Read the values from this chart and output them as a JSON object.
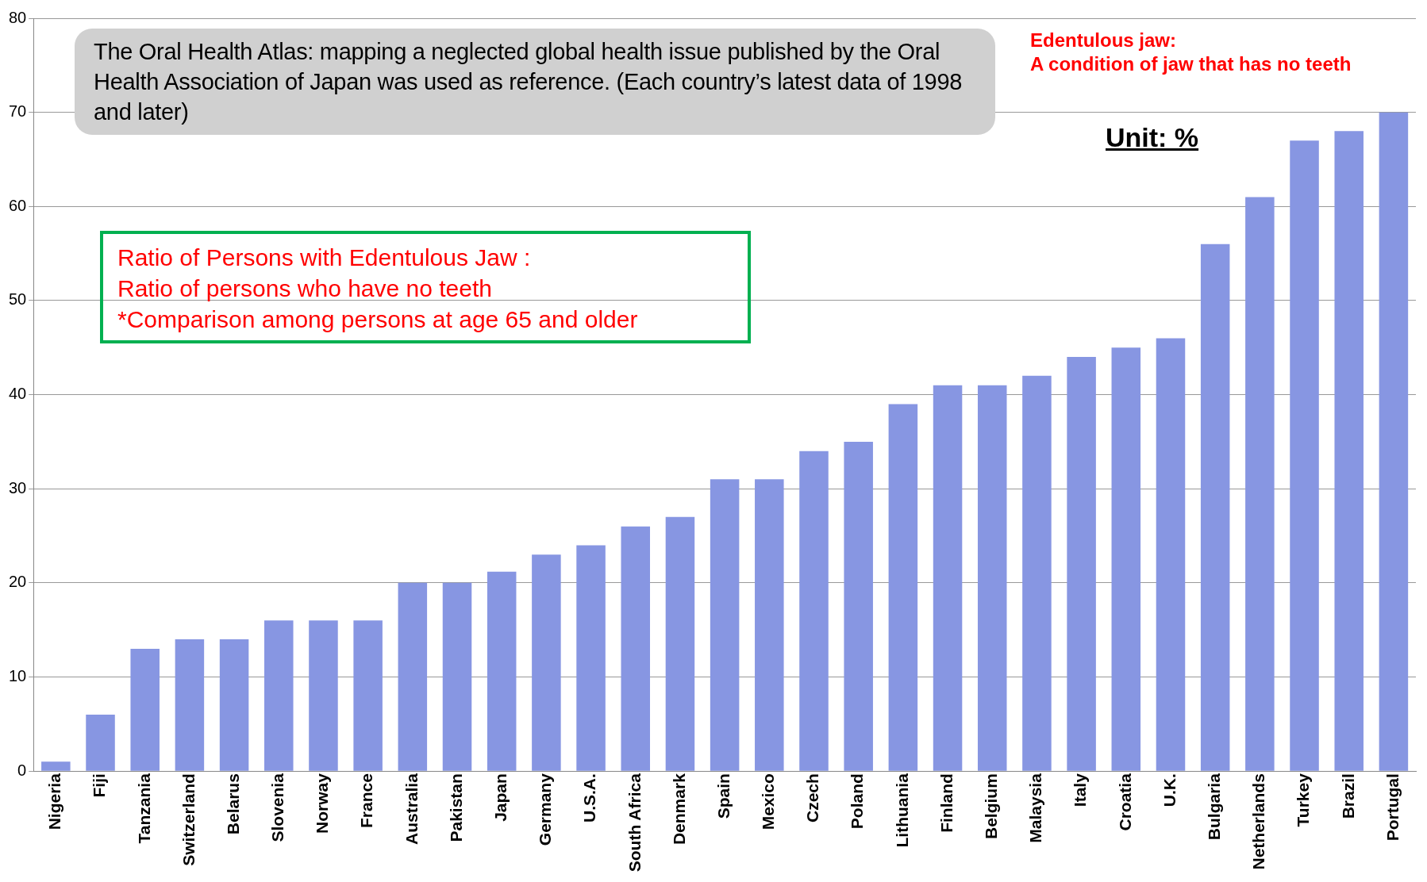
{
  "chart_data": {
    "type": "bar",
    "categories": [
      "Nigeria",
      "Fiji",
      "Tanzania",
      "Switzerland",
      "Belarus",
      "Slovenia",
      "Norway",
      "France",
      "Australia",
      "Pakistan",
      "Japan",
      "Germany",
      "U.S.A.",
      "South Africa",
      "Denmark",
      "Spain",
      "Mexico",
      "Czech",
      "Poland",
      "Lithuania",
      "Finland",
      "Belgium",
      "Malaysia",
      "Italy",
      "Croatia",
      "U.K.",
      "Bulgaria",
      "Netherlands",
      "Turkey",
      "Brazil",
      "Portugal"
    ],
    "values": [
      1,
      6,
      13,
      14,
      14,
      16,
      16,
      16,
      20,
      20,
      21.2,
      23,
      24,
      26,
      27,
      31,
      31,
      34,
      35,
      39,
      41,
      41,
      42,
      44,
      45,
      46,
      56,
      61,
      67,
      68,
      70
    ],
    "color": "#8796e2",
    "ylim": [
      0,
      80
    ],
    "yticks": [
      0,
      10,
      20,
      30,
      40,
      50,
      60,
      70,
      80
    ],
    "grid": "y",
    "legend": false,
    "annotations": [
      "The Oral Health Atlas: mapping a neglected global health issue published by the Oral Health Association of Japan was used as reference. (Each country’s latest data of 1998 and later)",
      "Edentulous jaw:\nA condition of jaw that has no teeth",
      "Unit: %",
      "Ratio of Persons with Edentulous Jaw :\nRatio of persons who have no teeth\n*Comparison among persons at age 65 and older"
    ]
  }
}
